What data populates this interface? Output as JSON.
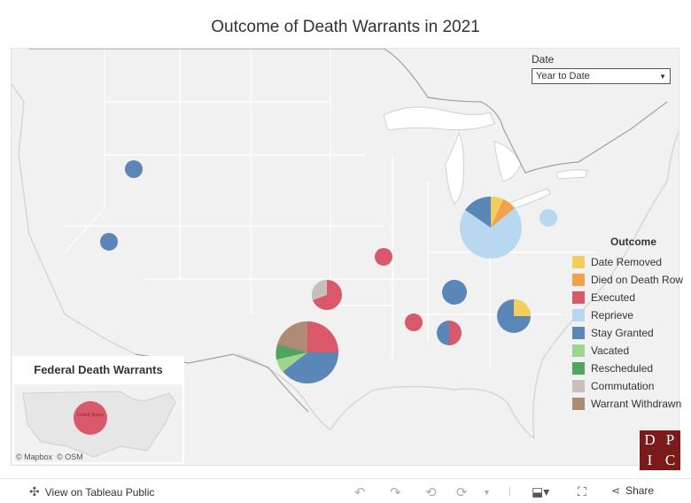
{
  "title": "Outcome of Death Warrants in 2021",
  "filter": {
    "label": "Date",
    "value": "Year to Date"
  },
  "legend": {
    "title": "Outcome",
    "items": [
      {
        "label": "Date Removed",
        "color": "#f2cf5b"
      },
      {
        "label": "Died on Death Row",
        "color": "#f4a14e"
      },
      {
        "label": "Executed",
        "color": "#d9596b"
      },
      {
        "label": "Reprieve",
        "color": "#b7d8ef"
      },
      {
        "label": "Stay Granted",
        "color": "#5b87b8"
      },
      {
        "label": "Vacated",
        "color": "#9fd58d"
      },
      {
        "label": "Rescheduled",
        "color": "#4ea55e"
      },
      {
        "label": "Commutation",
        "color": "#c6bfbb"
      },
      {
        "label": "Warrant Withdrawn",
        "color": "#b08b74"
      }
    ]
  },
  "federal": {
    "title": "Federal Death Warrants",
    "label": "United States",
    "outcome": "Executed"
  },
  "attribution": {
    "mapbox": "© Mapbox",
    "osm": "© OSM"
  },
  "logo": {
    "letters": [
      "D",
      "P",
      "I",
      "C"
    ]
  },
  "toolbar": {
    "view_label": "View on Tableau Public",
    "share_label": "Share"
  }
}
